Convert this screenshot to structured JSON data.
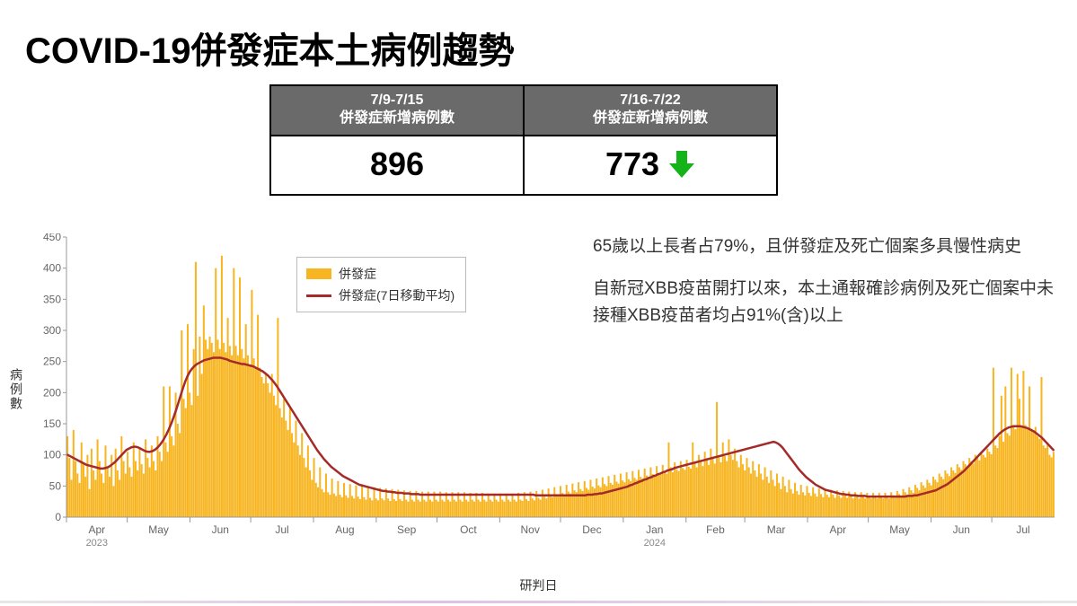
{
  "title": "COVID-19併發症本土病例趨勢",
  "summary": {
    "cols": [
      {
        "head_line1": "7/9-7/15",
        "head_line2": "併發症新增病例數",
        "value": "896",
        "trend": "none"
      },
      {
        "head_line1": "7/16-7/22",
        "head_line2": "併發症新增病例數",
        "value": "773",
        "trend": "down"
      }
    ],
    "trend_down_color": "#15b31a",
    "header_bg": "#6a6a6a",
    "header_fg": "#ffffff",
    "border": "#000000",
    "value_fontsize": 36
  },
  "notes": {
    "p1": "65歲以上長者占79%，且併發症及死亡個案多具慢性病史",
    "p2": "自新冠XBB疫苗開打以來，本土通報確診病例及死亡個案中未接種XBB疫苗者均占91%(含)以上",
    "fontsize": 19,
    "color": "#333333"
  },
  "chart": {
    "type": "bar+line",
    "y_label": "病例數",
    "x_label": "研判日",
    "y_lim": [
      0,
      450
    ],
    "y_ticks": [
      0,
      50,
      100,
      150,
      200,
      250,
      300,
      350,
      400,
      450
    ],
    "x_months": [
      "Apr",
      "May",
      "Jun",
      "Jul",
      "Aug",
      "Sep",
      "Oct",
      "Nov",
      "Dec",
      "Jan",
      "Feb",
      "Mar",
      "Apr",
      "May",
      "Jun",
      "Jul"
    ],
    "x_year_labels": [
      {
        "at_month_index": 0,
        "text": "2023"
      },
      {
        "at_month_index": 9,
        "text": "2024"
      }
    ],
    "bar_color": "#f7b521",
    "line_color": "#a52a2a",
    "line_width": 2.5,
    "axis_color": "#999999",
    "tick_label_color": "#666666",
    "background_color": "#ffffff",
    "legend": {
      "border": "#bbbbbb",
      "items": [
        {
          "type": "bar",
          "label": "併發症",
          "color": "#f7b521"
        },
        {
          "type": "line",
          "label": "併發症(7日移動平均)",
          "color": "#a52a2a"
        }
      ]
    },
    "month_day_counts": [
      30,
      31,
      30,
      31,
      31,
      30,
      31,
      30,
      31,
      31,
      29,
      31,
      30,
      31,
      30,
      31
    ],
    "bar_values": [
      130,
      95,
      60,
      140,
      90,
      70,
      55,
      120,
      85,
      65,
      100,
      45,
      110,
      75,
      60,
      125,
      90,
      70,
      55,
      115,
      80,
      65,
      100,
      50,
      110,
      75,
      60,
      130,
      90,
      70,
      105,
      80,
      65,
      120,
      90,
      75,
      110,
      85,
      70,
      125,
      95,
      80,
      115,
      90,
      75,
      130,
      105,
      90,
      210,
      120,
      105,
      210,
      130,
      115,
      200,
      150,
      135,
      300,
      190,
      175,
      310,
      200,
      180,
      270,
      410,
      195,
      290,
      230,
      340,
      285,
      270,
      290,
      280,
      265,
      400,
      285,
      270,
      420,
      280,
      265,
      320,
      275,
      260,
      400,
      275,
      260,
      385,
      270,
      255,
      310,
      260,
      245,
      365,
      255,
      240,
      325,
      240,
      225,
      215,
      230,
      215,
      200,
      230,
      195,
      180,
      320,
      175,
      160,
      190,
      155,
      140,
      175,
      135,
      120,
      155,
      115,
      100,
      135,
      95,
      80,
      115,
      75,
      60,
      95,
      55,
      48,
      80,
      45,
      40,
      70,
      40,
      36,
      62,
      38,
      34,
      58,
      36,
      32,
      55,
      35,
      31,
      53,
      34,
      30,
      51,
      33,
      29,
      50,
      32,
      28,
      49,
      31,
      27,
      48,
      30,
      27,
      47,
      30,
      27,
      46,
      30,
      26,
      45,
      29,
      26,
      44,
      29,
      26,
      43,
      28,
      25,
      42,
      28,
      25,
      42,
      28,
      25,
      41,
      28,
      25,
      41,
      28,
      25,
      41,
      28,
      25,
      41,
      28,
      25,
      40,
      28,
      25,
      40,
      28,
      25,
      40,
      28,
      25,
      40,
      28,
      25,
      39,
      28,
      25,
      39,
      28,
      25,
      39,
      28,
      25,
      38,
      28,
      25,
      38,
      28,
      25,
      38,
      28,
      25,
      38,
      28,
      25,
      38,
      28,
      25,
      39,
      28,
      26,
      40,
      29,
      26,
      41,
      30,
      27,
      42,
      31,
      28,
      44,
      33,
      30,
      46,
      35,
      32,
      48,
      37,
      34,
      50,
      39,
      36,
      52,
      41,
      38,
      54,
      43,
      40,
      56,
      45,
      42,
      58,
      47,
      44,
      60,
      49,
      46,
      62,
      51,
      48,
      64,
      53,
      50,
      66,
      55,
      52,
      68,
      57,
      54,
      70,
      59,
      56,
      72,
      61,
      58,
      74,
      63,
      60,
      76,
      65,
      62,
      78,
      67,
      64,
      80,
      69,
      66,
      82,
      71,
      68,
      84,
      73,
      70,
      120,
      80,
      72,
      88,
      77,
      74,
      90,
      79,
      76,
      92,
      81,
      78,
      120,
      88,
      80,
      100,
      90,
      82,
      105,
      92,
      84,
      110,
      94,
      86,
      185,
      96,
      88,
      120,
      98,
      90,
      125,
      100,
      92,
      110,
      90,
      80,
      100,
      85,
      75,
      95,
      80,
      70,
      90,
      75,
      65,
      85,
      70,
      60,
      80,
      65,
      55,
      75,
      60,
      50,
      70,
      55,
      45,
      65,
      50,
      40,
      60,
      45,
      38,
      55,
      42,
      36,
      52,
      40,
      35,
      50,
      39,
      34,
      48,
      38,
      33,
      46,
      37,
      32,
      45,
      36,
      32,
      44,
      36,
      31,
      43,
      35,
      31,
      42,
      35,
      31,
      41,
      35,
      30,
      40,
      34,
      30,
      40,
      34,
      30,
      39,
      34,
      30,
      39,
      34,
      30,
      39,
      34,
      30,
      39,
      34,
      30,
      40,
      35,
      31,
      42,
      37,
      33,
      45,
      40,
      36,
      48,
      43,
      39,
      52,
      47,
      43,
      56,
      51,
      47,
      60,
      55,
      51,
      65,
      60,
      56,
      70,
      65,
      61,
      75,
      70,
      66,
      80,
      75,
      71,
      85,
      80,
      76,
      90,
      85,
      81,
      95,
      90,
      86,
      100,
      95,
      91,
      105,
      100,
      96,
      110,
      105,
      101,
      240,
      115,
      111,
      130,
      195,
      121,
      210,
      135,
      131,
      240,
      145,
      141,
      230,
      190,
      146,
      235,
      148,
      144,
      210,
      142,
      138,
      145,
      130,
      126,
      225,
      115,
      111,
      120,
      100,
      96,
      105
    ],
    "line_values": [
      100,
      98,
      96,
      94,
      92,
      90,
      88,
      86,
      84,
      83,
      82,
      81,
      80,
      79,
      78,
      78,
      79,
      80,
      82,
      85,
      88,
      92,
      96,
      100,
      104,
      108,
      110,
      112,
      113,
      113,
      112,
      110,
      108,
      106,
      105,
      105,
      106,
      108,
      111,
      115,
      120,
      126,
      133,
      141,
      150,
      160,
      171,
      183,
      195,
      207,
      218,
      227,
      234,
      239,
      243,
      246,
      248,
      250,
      252,
      253,
      254,
      255,
      256,
      256,
      256,
      256,
      255,
      254,
      253,
      251,
      250,
      249,
      248,
      247,
      246,
      246,
      245,
      244,
      243,
      242,
      240,
      238,
      236,
      234,
      231,
      228,
      224,
      220,
      215,
      210,
      204,
      198,
      192,
      186,
      180,
      174,
      168,
      162,
      156,
      150,
      144,
      138,
      132,
      126,
      120,
      114,
      108,
      103,
      98,
      93,
      89,
      85,
      81,
      78,
      75,
      72,
      69,
      66,
      64,
      62,
      60,
      58,
      56,
      54,
      52,
      51,
      50,
      49,
      48,
      47,
      46,
      45,
      44,
      43,
      42,
      42,
      41,
      41,
      40,
      40,
      39,
      39,
      39,
      38,
      38,
      38,
      37,
      37,
      37,
      37,
      36,
      36,
      36,
      36,
      36,
      36,
      36,
      36,
      36,
      36,
      36,
      36,
      36,
      36,
      36,
      36,
      36,
      36,
      36,
      36,
      36,
      36,
      36,
      36,
      36,
      36,
      36,
      36,
      36,
      36,
      36,
      36,
      36,
      36,
      36,
      36,
      36,
      36,
      36,
      36,
      36,
      36,
      36,
      36,
      36,
      36,
      36,
      36,
      36,
      35,
      35,
      35,
      35,
      35,
      35,
      35,
      35,
      35,
      35,
      35,
      35,
      35,
      35,
      35,
      35,
      35,
      35,
      35,
      35,
      35,
      35,
      36,
      36,
      36,
      37,
      37,
      38,
      38,
      39,
      40,
      41,
      42,
      43,
      44,
      45,
      46,
      47,
      48,
      49,
      51,
      52,
      54,
      55,
      57,
      58,
      60,
      61,
      63,
      64,
      66,
      67,
      69,
      70,
      72,
      73,
      75,
      76,
      77,
      79,
      80,
      81,
      82,
      83,
      84,
      85,
      86,
      87,
      88,
      89,
      90,
      91,
      92,
      93,
      94,
      95,
      96,
      97,
      98,
      99,
      100,
      101,
      102,
      103,
      104,
      105,
      106,
      107,
      108,
      109,
      110,
      111,
      112,
      113,
      114,
      115,
      116,
      117,
      118,
      119,
      120,
      121,
      120,
      118,
      115,
      111,
      106,
      101,
      96,
      91,
      86,
      81,
      76,
      72,
      68,
      64,
      61,
      58,
      55,
      52,
      50,
      48,
      46,
      44,
      43,
      42,
      41,
      40,
      39,
      38,
      37,
      37,
      36,
      36,
      35,
      35,
      35,
      34,
      34,
      34,
      34,
      33,
      33,
      33,
      33,
      33,
      33,
      33,
      33,
      33,
      33,
      33,
      33,
      33,
      33,
      33,
      33,
      33,
      34,
      34,
      34,
      35,
      35,
      36,
      37,
      38,
      39,
      40,
      41,
      42,
      43,
      45,
      47,
      49,
      51,
      53,
      56,
      59,
      62,
      65,
      68,
      71,
      74,
      78,
      82,
      86,
      90,
      94,
      98,
      102,
      106,
      110,
      114,
      118,
      122,
      126,
      130,
      134,
      137,
      140,
      142,
      144,
      145,
      146,
      146,
      146,
      146,
      145,
      144,
      143,
      141,
      139,
      137,
      134,
      131,
      128,
      124,
      120,
      116,
      112,
      108
    ]
  }
}
